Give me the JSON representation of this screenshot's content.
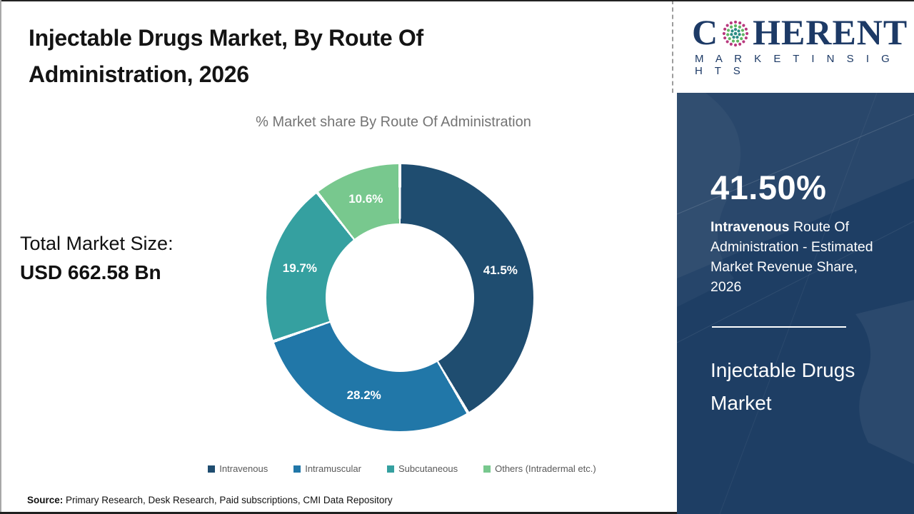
{
  "header": {
    "title_line1": "Injectable Drugs Market, By Route Of",
    "title_line2": "Administration, 2026"
  },
  "logo": {
    "part1": "C",
    "part2": "HERENT",
    "subtitle": "M A R K E T   I N S I G H T S",
    "brand_color": "#1D3A66",
    "globe_icon_colors": [
      "#2A8C84",
      "#5FB663",
      "#B8397E"
    ]
  },
  "main": {
    "chart_subtitle": "% Market share By Route Of Administration",
    "total_market_size_label": "Total Market Size:",
    "total_market_size_value": "USD 662.58 Bn"
  },
  "chart_data": {
    "type": "pie",
    "donut": true,
    "title": "% Market share By Route Of Administration",
    "start_angle_deg": 0,
    "direction": "clockwise",
    "legend_position": "bottom",
    "items": [
      {
        "label": "Intravenous",
        "value": 41.5,
        "display": "41.5%",
        "color": "#1F4D70"
      },
      {
        "label": "Intramuscular",
        "value": 28.2,
        "display": "28.2%",
        "color": "#2177A8"
      },
      {
        "label": "Subcutaneous",
        "value": 19.7,
        "display": "19.7%",
        "color": "#35A0A0"
      },
      {
        "label": "Others (Intradermal etc.)",
        "value": 10.6,
        "display": "10.6%",
        "color": "#78C88E"
      }
    ]
  },
  "sidebar": {
    "background": "#1E3E64",
    "highlight_value": "41.50%",
    "highlight_bold": "Intravenous",
    "highlight_rest": " Route Of Administration - Estimated Market Revenue Share, 2026",
    "report_title": "Injectable Drugs Market"
  },
  "footer": {
    "source_label": "Source:",
    "source_text": " Primary Research, Desk Research, Paid subscriptions, CMI Data Repository"
  }
}
